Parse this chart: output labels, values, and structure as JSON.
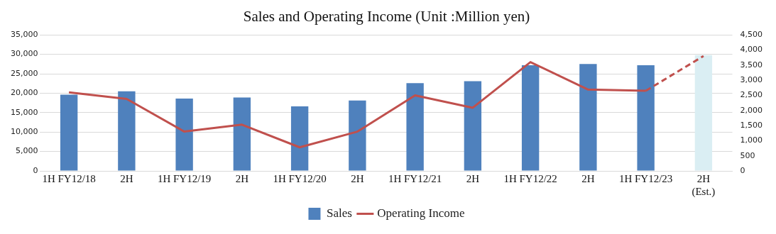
{
  "chart_data": {
    "type": "bar",
    "title": "Sales and Operating Income (Unit :Million yen)",
    "categories": [
      "1H FY12/18",
      "2H",
      "1H FY12/19",
      "2H",
      "1H FY12/20",
      "2H",
      "1H FY12/21",
      "2H",
      "1H FY12/22",
      "2H",
      "1H FY12/23",
      "2H\n(Est.)"
    ],
    "series": [
      {
        "name": "Sales",
        "color": "#4f81bd",
        "colors": [
          "#4f81bd",
          "#4f81bd",
          "#4f81bd",
          "#4f81bd",
          "#4f81bd",
          "#4f81bd",
          "#4f81bd",
          "#4f81bd",
          "#4f81bd",
          "#4f81bd",
          "#4f81bd",
          "#daeef3"
        ],
        "values": [
          19600,
          20500,
          18600,
          18900,
          16600,
          18100,
          22600,
          23100,
          27200,
          27500,
          27200,
          29800
        ]
      },
      {
        "name": "Operating Income",
        "type": "line",
        "axis": "y2",
        "color": "#c0504d",
        "line_style": "solid",
        "values": [
          2600,
          2380,
          1300,
          1530,
          780,
          1300,
          2500,
          2090,
          3600,
          2690,
          2650,
          null
        ]
      },
      {
        "type": "line",
        "axis": "y2",
        "color": "#c0504d",
        "line_style": "dashed",
        "values": [
          null,
          null,
          null,
          null,
          null,
          null,
          null,
          null,
          null,
          null,
          2650,
          3800
        ]
      }
    ],
    "ylim": [
      0,
      35000
    ],
    "yticks": [
      0,
      {
        "value": 5000,
        "label": "5,000"
      },
      {
        "value": 10000,
        "label": "10,000"
      },
      {
        "value": 15000,
        "label": "15,000"
      },
      {
        "value": 20000,
        "label": "20,000"
      },
      {
        "value": 25000,
        "label": "25,000"
      },
      {
        "value": 30000,
        "label": "30,000"
      },
      {
        "value": 35000,
        "label": "35,000"
      }
    ],
    "y2lim": [
      0,
      4500
    ],
    "y2ticks": [
      0,
      500,
      {
        "value": 1000,
        "label": "1,000"
      },
      {
        "value": 1500,
        "label": "1,500"
      },
      {
        "value": 2000,
        "label": "2,000"
      },
      {
        "value": 2500,
        "label": "2,500"
      },
      {
        "value": 3000,
        "label": "3,000"
      },
      {
        "value": 3500,
        "label": "3,500"
      },
      {
        "value": 4000,
        "label": "4,000"
      },
      {
        "value": 4500,
        "label": "4,500"
      }
    ],
    "grid": "y",
    "legend": "bottom",
    "marker": "none"
  }
}
